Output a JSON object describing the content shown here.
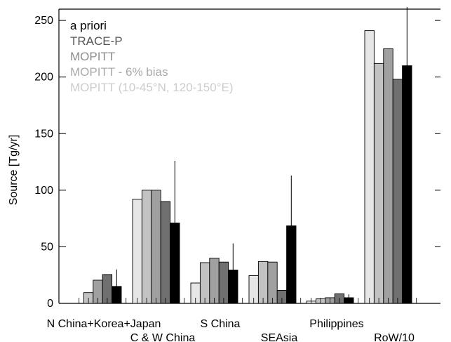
{
  "chart_data": {
    "type": "bar",
    "ylabel": "Source [Tg/yr]",
    "xlabel": "",
    "title": "",
    "ylim": [
      0,
      260
    ],
    "yticks": [
      0,
      50,
      100,
      150,
      200,
      250
    ],
    "categories": [
      "N China+Korea+Japan",
      "C & W China",
      "S China",
      "SEAsia",
      "Philippines",
      "RoW/10"
    ],
    "series": [
      {
        "name": "a priori",
        "color": "#e6e6e6",
        "values": [
          0,
          92,
          18,
          24.5,
          2,
          241
        ]
      },
      {
        "name": "TRACE-P",
        "color": "#c2c2c2",
        "values": [
          9.5,
          100,
          36,
          37,
          4,
          212
        ]
      },
      {
        "name": "MOPITT",
        "color": "#a0a0a0",
        "values": [
          20.5,
          100,
          40,
          36.5,
          5,
          225
        ]
      },
      {
        "name": "MOPITT - 6% bias",
        "color": "#707070",
        "values": [
          25.5,
          90,
          36.5,
          11.5,
          8.5,
          198
        ]
      },
      {
        "name": "MOPITT (10-45°N, 120-150°E)",
        "color": "#000000",
        "values": [
          15,
          71,
          29.5,
          68.5,
          5,
          210
        ]
      }
    ],
    "error_bars": [
      {
        "category": "N China+Korea+Japan",
        "series": "MOPITT (10-45°N, 120-150°E)",
        "high": 30
      },
      {
        "category": "C & W China",
        "series": "MOPITT (10-45°N, 120-150°E)",
        "high": 126
      },
      {
        "category": "S China",
        "series": "MOPITT (10-45°N, 120-150°E)",
        "high": 53
      },
      {
        "category": "SEAsia",
        "series": "MOPITT (10-45°N, 120-150°E)",
        "high": 113
      },
      {
        "category": "Philippines",
        "series": "MOPITT (10-45°N, 120-150°E)",
        "high": 8
      },
      {
        "category": "RoW/10",
        "series": "MOPITT (10-45°N, 120-150°E)",
        "high": 275
      }
    ],
    "legend": {
      "placement": "top-left",
      "entries": [
        {
          "label": "a priori",
          "color": "#000000"
        },
        {
          "label": "TRACE-P",
          "color": "#555555"
        },
        {
          "label": "MOPITT",
          "color": "#8c8c8c"
        },
        {
          "label": "MOPITT - 6% bias",
          "color": "#aaaaaa"
        },
        {
          "label": "MOPITT (10-45°N, 120-150°E)",
          "color": "#cccccc"
        }
      ]
    },
    "grid": false
  }
}
